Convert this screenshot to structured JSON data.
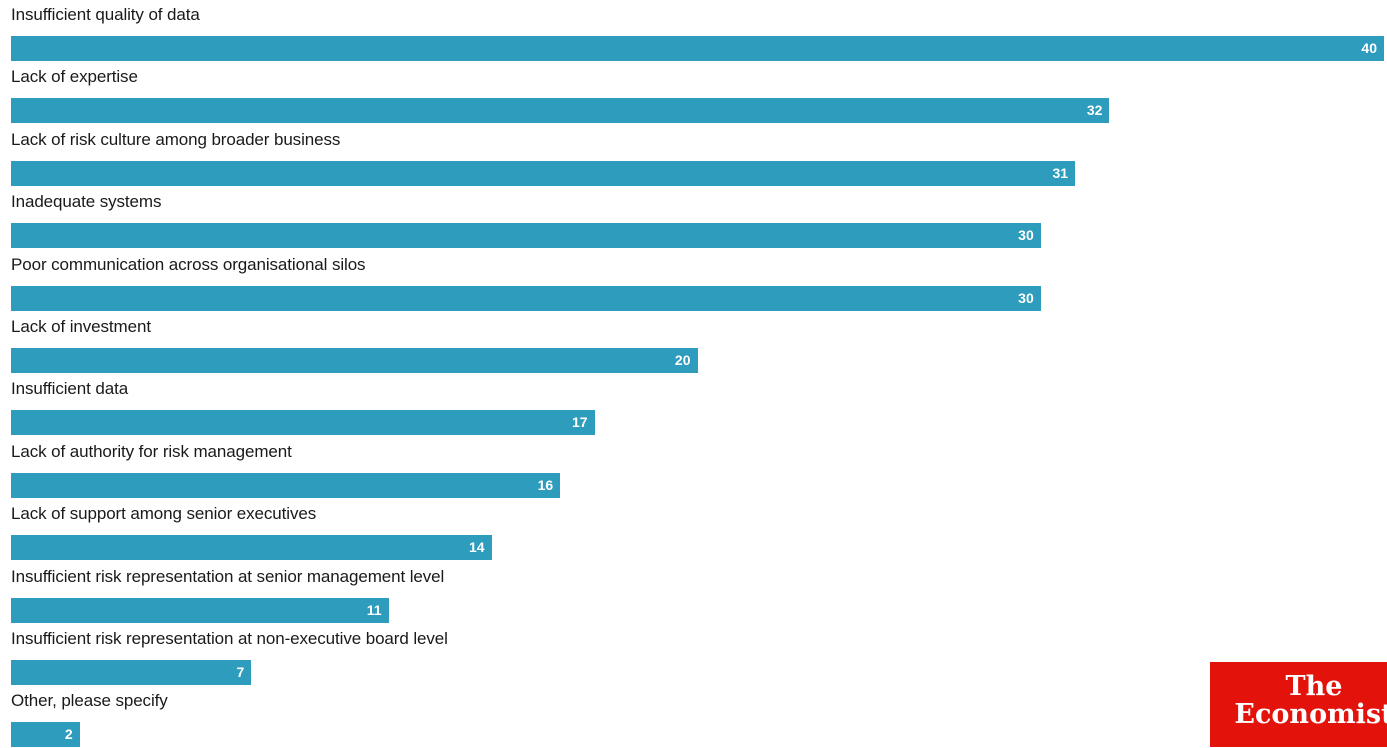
{
  "chart_data": {
    "type": "bar",
    "orientation": "horizontal",
    "categories": [
      "Insufficient quality of data",
      "Lack of expertise",
      "Lack of risk culture among broader business",
      "Inadequate systems",
      "Poor communication across organisational silos",
      "Lack of investment",
      "Insufficient data",
      "Lack of authority for risk management",
      "Lack of support among senior executives",
      "Insufficient risk representation at senior management level",
      "Insufficient risk representation at non-executive board level",
      "Other, please specify"
    ],
    "values": [
      40,
      32,
      31,
      30,
      30,
      20,
      17,
      16,
      14,
      11,
      7,
      2
    ],
    "xlim": [
      0,
      40
    ],
    "grid": false,
    "bar_color": "#2e9cbd"
  },
  "logo": {
    "line1": "The",
    "line2": "Economist",
    "color": "#e3120b"
  }
}
